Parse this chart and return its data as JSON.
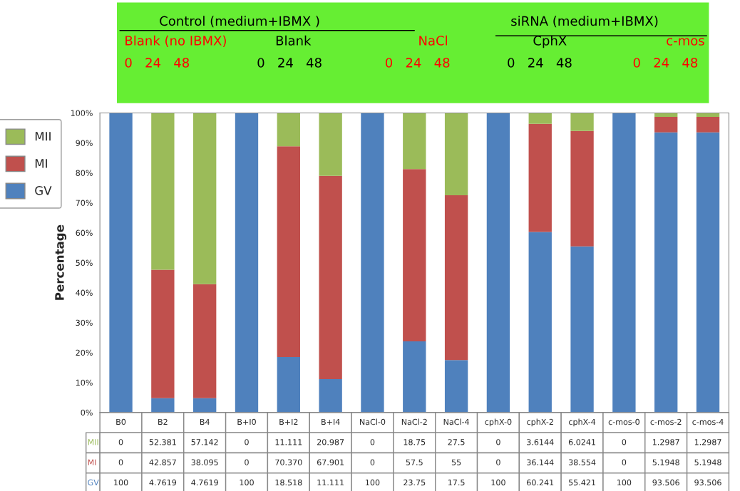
{
  "chart_data": {
    "type": "bar",
    "stacked": true,
    "ylabel": "Percentage",
    "categories": [
      "B0",
      "B2",
      "B4",
      "B+I0",
      "B+I2",
      "B+I4",
      "NaCl-0",
      "NaCl-2",
      "NaCl-4",
      "cphX-0",
      "cphX-2",
      "cphX-4",
      "c-mos-0",
      "c-mos-2",
      "c-mos-4"
    ],
    "series": [
      {
        "name": "GV",
        "color": "#4f81bd",
        "values": [
          100,
          4.7619,
          4.7619,
          100,
          18.518,
          11.111,
          100,
          23.75,
          17.5,
          100,
          60.241,
          55.421,
          100,
          93.506,
          93.506
        ],
        "value_labels": [
          "100",
          "4.7619",
          "4.7619",
          "100",
          "18.518",
          "11.111",
          "100",
          "23.75",
          "17.5",
          "100",
          "60.241",
          "55.421",
          "100",
          "93.506",
          "93.506"
        ]
      },
      {
        "name": "MI",
        "color": "#c0504d",
        "values": [
          0,
          42.857,
          38.095,
          0,
          70.37,
          67.901,
          0,
          57.5,
          55,
          0,
          36.144,
          38.554,
          0,
          5.1948,
          5.1948
        ],
        "value_labels": [
          "0",
          "42.857",
          "38.095",
          "0",
          "70.370",
          "67.901",
          "0",
          "57.5",
          "55",
          "0",
          "36.144",
          "38.554",
          "0",
          "5.1948",
          "5.1948"
        ]
      },
      {
        "name": "MII",
        "color": "#9bbb59",
        "values": [
          0,
          52.381,
          57.142,
          0,
          11.111,
          20.987,
          0,
          18.75,
          27.5,
          0,
          3.6144,
          6.0241,
          0,
          1.2987,
          1.2987
        ],
        "value_labels": [
          "0",
          "52.381",
          "57.142",
          "0",
          "11.111",
          "20.987",
          "0",
          "18.75",
          "27.5",
          "0",
          "3.6144",
          "6.0241",
          "0",
          "1.2987",
          "1.2987"
        ]
      }
    ],
    "ylim": [
      0,
      100
    ],
    "yticks": [
      {
        "value": 0,
        "label": "0%"
      },
      {
        "value": 10,
        "label": "10%"
      },
      {
        "value": 20,
        "label": "20%"
      },
      {
        "value": 30,
        "label": "30%"
      },
      {
        "value": 40,
        "label": "40%"
      },
      {
        "value": 50,
        "label": "50%"
      },
      {
        "value": 60,
        "label": "60%"
      },
      {
        "value": 70,
        "label": "70%"
      },
      {
        "value": 80,
        "label": "80%"
      },
      {
        "value": 90,
        "label": "90%"
      },
      {
        "value": 100,
        "label": "100%"
      }
    ],
    "grid": false,
    "legend": "left",
    "annotations": [
      "Control (medium+IBMX )",
      "siRNA (medium+IBMX)",
      "Blank (no IBMX)",
      "Blank",
      "NaCl",
      "CphX",
      "c-mos",
      "0   24   48",
      "0   24   48",
      "0   24   48",
      "0   24   48",
      "0   24   48"
    ]
  }
}
